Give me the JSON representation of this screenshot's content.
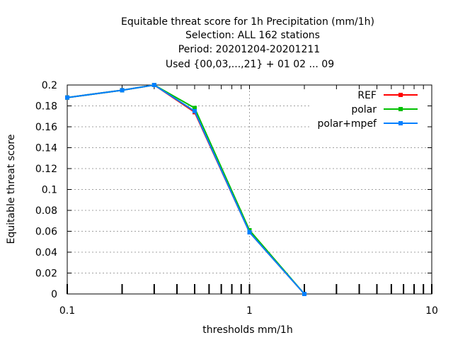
{
  "chart_data": {
    "type": "line",
    "title_lines": [
      "Equitable threat score  for 1h Precipitation (mm/1h)",
      "Selection: ALL    162 stations",
      "Period: 20201204-20201211",
      "Used {00,03,...,21} + 01 02 ... 09"
    ],
    "xlabel": "thresholds mm/1h",
    "ylabel": "Equitable threat score",
    "x_scale": "log",
    "xlim": [
      0.1,
      10
    ],
    "ylim": [
      0,
      0.2
    ],
    "x_ticks": [
      {
        "value": 0.1,
        "label": "0.1"
      },
      {
        "value": 1,
        "label": "1"
      },
      {
        "value": 10,
        "label": "10"
      }
    ],
    "y_ticks": [
      {
        "value": 0,
        "label": "0"
      },
      {
        "value": 0.02,
        "label": "0.02"
      },
      {
        "value": 0.04,
        "label": "0.04"
      },
      {
        "value": 0.06,
        "label": "0.06"
      },
      {
        "value": 0.08,
        "label": "0.08"
      },
      {
        "value": 0.1,
        "label": "0.1"
      },
      {
        "value": 0.12,
        "label": "0.12"
      },
      {
        "value": 0.14,
        "label": "0.14"
      },
      {
        "value": 0.16,
        "label": "0.16"
      },
      {
        "value": 0.18,
        "label": "0.18"
      },
      {
        "value": 0.2,
        "label": "0.2"
      }
    ],
    "grid": true,
    "legend_position": "top-right",
    "x": [
      0.1,
      0.2,
      0.3,
      0.5,
      1,
      2
    ],
    "series": [
      {
        "name": "REF",
        "color": "#ff0000",
        "values": [
          0.188,
          0.195,
          0.2,
          0.174,
          0.059,
          0.0
        ]
      },
      {
        "name": "polar",
        "color": "#00c000",
        "values": [
          0.188,
          0.195,
          0.2,
          0.178,
          0.061,
          0.0
        ]
      },
      {
        "name": "polar+mpef",
        "color": "#0080ff",
        "values": [
          0.188,
          0.195,
          0.2,
          0.175,
          0.059,
          0.0
        ]
      }
    ]
  }
}
